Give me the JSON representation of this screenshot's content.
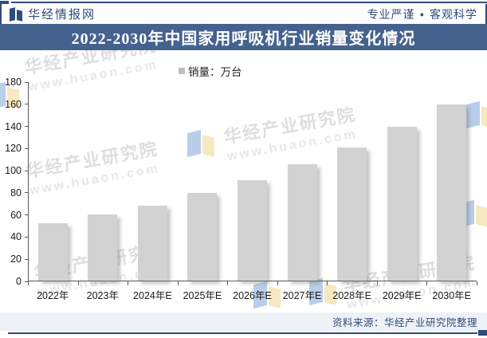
{
  "header": {
    "logo_text": "华经情报网",
    "slogan_left": "专业严谨",
    "slogan_dot": "●",
    "slogan_right": "客观科学"
  },
  "title_bar": {
    "title": "2022-2030年中国家用呼吸机行业销量变化情况"
  },
  "legend": {
    "label": "销量：万台"
  },
  "chart_data": {
    "type": "bar",
    "title": "2022-2030年中国家用呼吸机行业销量变化情况",
    "series_name": "销量：万台",
    "categories": [
      "2022年",
      "2023年",
      "2024年E",
      "2025年E",
      "2026年E",
      "2027年E",
      "2028年E",
      "2029年E",
      "2030年E"
    ],
    "values": [
      52,
      60,
      68,
      79,
      91,
      105,
      120,
      139,
      159
    ],
    "xlabel": "",
    "ylabel": "销量：万台",
    "ylim": [
      0,
      180
    ],
    "ytick_step": 20,
    "grid": false,
    "legend_position": "top-center",
    "bar_color": "#d2d2d2"
  },
  "watermark": {
    "name": "华经产业研究院",
    "url": "www.huaon.com"
  },
  "footer": {
    "source": "资料来源：华经产业研究院整理"
  },
  "colors": {
    "brand_dark": "#2e4d7b",
    "title_bar_bg": "#45628f",
    "footer_bg": "#eef1f6",
    "bar_fill": "#d2d2d2",
    "axis": "#595959",
    "legend_marker": "#bfbfbf"
  }
}
